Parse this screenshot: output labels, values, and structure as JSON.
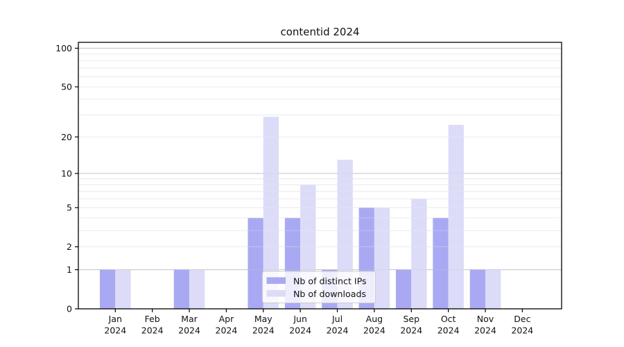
{
  "title": "contentid 2024",
  "chart_data": {
    "type": "bar",
    "scale": "log1p",
    "title": "contentid 2024",
    "xlabel": "",
    "ylabel": "",
    "categories": [
      "Jan",
      "Feb",
      "Mar",
      "Apr",
      "May",
      "Jun",
      "Jul",
      "Aug",
      "Sep",
      "Oct",
      "Nov",
      "Dec"
    ],
    "category_year": "2024",
    "series": [
      {
        "name": "Nb of distinct IPs",
        "color": "#a9a9f3",
        "values": [
          1,
          0,
          1,
          0,
          4,
          4,
          1,
          5,
          1,
          4,
          1,
          0
        ]
      },
      {
        "name": "Nb of downloads",
        "color": "#dcdcf8",
        "values": [
          1,
          0,
          1,
          0,
          29,
          8,
          13,
          5,
          6,
          25,
          1,
          0
        ]
      }
    ],
    "y_ticks": [
      0,
      1,
      2,
      5,
      10,
      20,
      50,
      100
    ],
    "grid_values": [
      1,
      2,
      3,
      4,
      5,
      6,
      7,
      8,
      9,
      10,
      20,
      30,
      40,
      50,
      60,
      70,
      80,
      90,
      100
    ],
    "grid_major_values": [
      1,
      10,
      100
    ],
    "ylim": [
      0,
      100
    ],
    "grid": true,
    "legend_position": "lower center"
  },
  "legend": {
    "items": [
      {
        "label": "Nb of distinct IPs",
        "color": "#a9a9f3"
      },
      {
        "label": "Nb of downloads",
        "color": "#dcdcf8"
      }
    ]
  },
  "colors": {
    "background": "#ffffff",
    "spine": "#000000",
    "grid_minor": "#ececec",
    "grid_major": "#c6c6c6",
    "text": "#111111",
    "legend_border": "#cccccc",
    "legend_bg": "#ffffff"
  }
}
